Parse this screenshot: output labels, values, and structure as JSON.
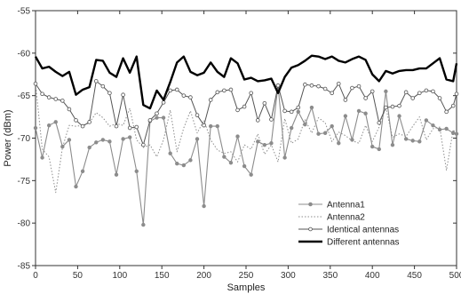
{
  "chart_data": {
    "type": "line",
    "xlabel": "Samples",
    "ylabel": "Power (dBm)",
    "xlim": [
      0,
      500
    ],
    "ylim": [
      -85,
      -55
    ],
    "x_ticks": [
      0,
      50,
      100,
      150,
      200,
      250,
      300,
      350,
      400,
      450,
      500
    ],
    "y_ticks": [
      -85,
      -80,
      -75,
      -70,
      -65,
      -60,
      -55
    ],
    "legend_position": "bottom-right",
    "grid": false,
    "colors": {
      "antenna1": "#8c8c8c",
      "antenna2": "#8c8c8c",
      "identical": "#555555",
      "different": "#000000"
    },
    "x": [
      0,
      8,
      16,
      24,
      32,
      40,
      48,
      56,
      64,
      72,
      80,
      88,
      96,
      104,
      112,
      120,
      128,
      136,
      144,
      152,
      160,
      168,
      176,
      184,
      192,
      200,
      208,
      216,
      224,
      232,
      240,
      248,
      256,
      264,
      272,
      280,
      288,
      296,
      304,
      312,
      320,
      328,
      336,
      344,
      352,
      360,
      368,
      376,
      384,
      392,
      400,
      408,
      416,
      424,
      432,
      440,
      448,
      456,
      464,
      472,
      480,
      488,
      496,
      500
    ],
    "series": [
      {
        "name": "Antenna1",
        "values": [
          -68.8,
          -72.3,
          -68.5,
          -68.1,
          -71.0,
          -70.2,
          -75.7,
          -73.9,
          -71.1,
          -70.5,
          -70.2,
          -70.4,
          -74.3,
          -70.1,
          -69.9,
          -73.9,
          -80.2,
          -68.0,
          -67.6,
          -67.6,
          -71.8,
          -73.0,
          -73.2,
          -72.6,
          -70.1,
          -78.0,
          -68.6,
          -68.6,
          -72.2,
          -72.9,
          -69.8,
          -73.3,
          -74.3,
          -70.4,
          -70.8,
          -70.6,
          -63.8,
          -72.3,
          -68.8,
          -66.9,
          -68.4,
          -66.4,
          -69.5,
          -69.4,
          -68.6,
          -70.6,
          -67.4,
          -70.2,
          -66.8,
          -67.1,
          -71.0,
          -71.3,
          -64.5,
          -70.8,
          -67.4,
          -70.1,
          -70.3,
          -70.4,
          -67.9,
          -68.5,
          -69.0,
          -68.9,
          -69.4,
          -69.5
        ]
      },
      {
        "name": "Antenna2",
        "values": [
          -63.6,
          -71.3,
          -72.2,
          -76.4,
          -71.1,
          -68.5,
          -68.6,
          -68.5,
          -68.2,
          -67.0,
          -67.6,
          -68.6,
          -68.3,
          -68.5,
          -66.5,
          -70.2,
          -71.1,
          -70.8,
          -72.2,
          -70.2,
          -66.7,
          -71.6,
          -68.8,
          -66.8,
          -69.4,
          -67.9,
          -70.2,
          -71.4,
          -71.8,
          -71.6,
          -72.8,
          -70.8,
          -71.3,
          -69.5,
          -71.9,
          -70.8,
          -72.8,
          -67.7,
          -70.6,
          -70.1,
          -67.8,
          -69.4,
          -67.6,
          -68.2,
          -70.4,
          -69.3,
          -69.7,
          -70.3,
          -70.6,
          -68.5,
          -70.4,
          -68.7,
          -66.4,
          -69.9,
          -69.5,
          -69.8,
          -68.6,
          -67.5,
          -70.2,
          -68.9,
          -68.7,
          -73.8,
          -69.0,
          -69.6
        ]
      },
      {
        "name": "Identical antennas",
        "values": [
          -63.6,
          -64.8,
          -65.2,
          -65.4,
          -65.6,
          -66.6,
          -67.9,
          -68.6,
          -68.1,
          -63.3,
          -63.9,
          -64.7,
          -68.6,
          -64.9,
          -68.8,
          -68.7,
          -70.8,
          -67.9,
          -67.1,
          -65.8,
          -64.4,
          -64.3,
          -65.0,
          -65.2,
          -67.3,
          -68.5,
          -65.5,
          -64.6,
          -64.4,
          -64.3,
          -66.7,
          -66.3,
          -64.7,
          -67.9,
          -65.9,
          -67.8,
          -63.8,
          -66.8,
          -66.9,
          -66.4,
          -63.7,
          -63.8,
          -63.9,
          -64.2,
          -64.7,
          -63.6,
          -65.5,
          -64.1,
          -63.9,
          -65.3,
          -64.5,
          -68.2,
          -66.4,
          -66.3,
          -66.2,
          -64.6,
          -65.3,
          -64.7,
          -64.4,
          -64.5,
          -65.3,
          -66.9,
          -66.2,
          -64.8
        ]
      },
      {
        "name": "Different antennas",
        "values": [
          -60.4,
          -61.8,
          -61.6,
          -62.2,
          -62.7,
          -62.2,
          -64.9,
          -64.3,
          -64.0,
          -60.8,
          -60.9,
          -62.3,
          -62.8,
          -60.6,
          -62.3,
          -60.4,
          -66.1,
          -66.5,
          -64.4,
          -65.5,
          -63.4,
          -61.1,
          -60.4,
          -62.2,
          -62.6,
          -62.3,
          -61.1,
          -62.2,
          -62.8,
          -60.6,
          -61.2,
          -63.1,
          -62.9,
          -63.3,
          -63.2,
          -63.0,
          -64.7,
          -62.8,
          -61.7,
          -61.4,
          -60.9,
          -60.3,
          -60.4,
          -60.7,
          -60.4,
          -60.9,
          -61.1,
          -60.7,
          -60.4,
          -60.8,
          -62.5,
          -63.3,
          -62.1,
          -62.4,
          -62.1,
          -62.0,
          -62.0,
          -61.8,
          -61.8,
          -61.2,
          -60.6,
          -63.1,
          -63.3,
          -61.2
        ]
      }
    ]
  }
}
